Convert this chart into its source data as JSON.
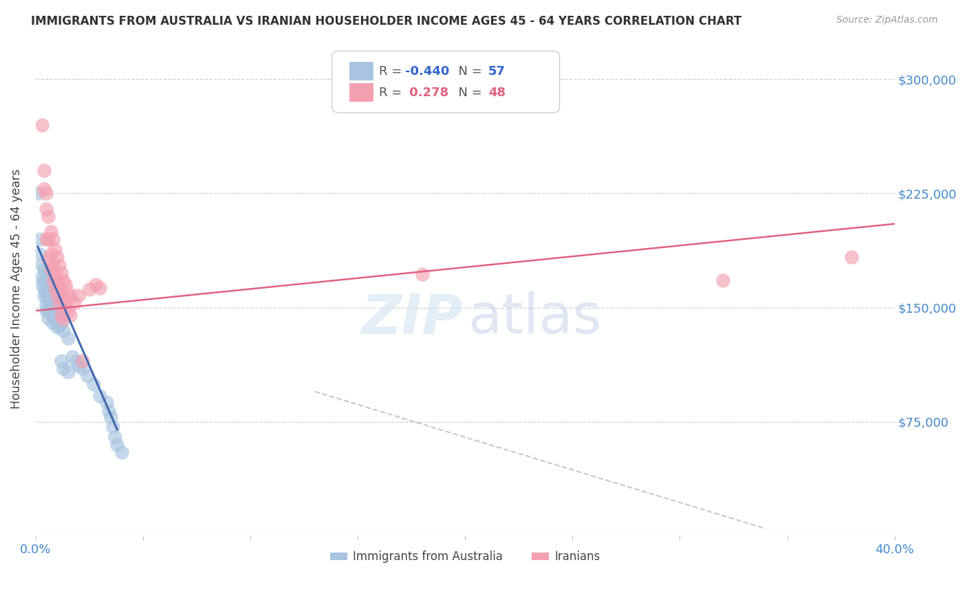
{
  "title": "IMMIGRANTS FROM AUSTRALIA VS IRANIAN HOUSEHOLDER INCOME AGES 45 - 64 YEARS CORRELATION CHART",
  "source": "Source: ZipAtlas.com",
  "ylabel": "Householder Income Ages 45 - 64 years",
  "y_ticks": [
    0,
    75000,
    150000,
    225000,
    300000
  ],
  "y_tick_labels": [
    "",
    "$75,000",
    "$150,000",
    "$225,000",
    "$300,000"
  ],
  "x_min": 0.0,
  "x_max": 0.4,
  "y_min": 0,
  "y_max": 325000,
  "australia_color": "#a8c4e0",
  "iran_color": "#f4a0b0",
  "australia_line_color": "#4169b0",
  "iran_line_color": "#e06080",
  "dashed_line_color": "#c8c8c8",
  "grid_color": "#d0d0d0",
  "tick_label_color": "#4488cc",
  "title_color": "#333333",
  "australia_scatter": [
    [
      0.001,
      225000
    ],
    [
      0.002,
      195000
    ],
    [
      0.002,
      185000
    ],
    [
      0.003,
      178000
    ],
    [
      0.003,
      170000
    ],
    [
      0.003,
      165000
    ],
    [
      0.004,
      175000
    ],
    [
      0.004,
      168000
    ],
    [
      0.004,
      162000
    ],
    [
      0.004,
      158000
    ],
    [
      0.005,
      172000
    ],
    [
      0.005,
      165000
    ],
    [
      0.005,
      158000
    ],
    [
      0.005,
      152000
    ],
    [
      0.005,
      148000
    ],
    [
      0.006,
      168000
    ],
    [
      0.006,
      162000
    ],
    [
      0.006,
      155000
    ],
    [
      0.006,
      148000
    ],
    [
      0.006,
      143000
    ],
    [
      0.007,
      163000
    ],
    [
      0.007,
      158000
    ],
    [
      0.007,
      152000
    ],
    [
      0.007,
      146000
    ],
    [
      0.008,
      158000
    ],
    [
      0.008,
      152000
    ],
    [
      0.008,
      145000
    ],
    [
      0.008,
      140000
    ],
    [
      0.009,
      155000
    ],
    [
      0.009,
      148000
    ],
    [
      0.009,
      142000
    ],
    [
      0.01,
      150000
    ],
    [
      0.01,
      143000
    ],
    [
      0.01,
      137000
    ],
    [
      0.011,
      145000
    ],
    [
      0.011,
      138000
    ],
    [
      0.012,
      140000
    ],
    [
      0.012,
      115000
    ],
    [
      0.013,
      135000
    ],
    [
      0.013,
      110000
    ],
    [
      0.015,
      130000
    ],
    [
      0.015,
      108000
    ],
    [
      0.017,
      118000
    ],
    [
      0.019,
      115000
    ],
    [
      0.02,
      112000
    ],
    [
      0.022,
      110000
    ],
    [
      0.024,
      105000
    ],
    [
      0.027,
      100000
    ],
    [
      0.03,
      92000
    ],
    [
      0.033,
      88000
    ],
    [
      0.034,
      82000
    ],
    [
      0.035,
      78000
    ],
    [
      0.036,
      72000
    ],
    [
      0.037,
      65000
    ],
    [
      0.038,
      60000
    ],
    [
      0.04,
      55000
    ]
  ],
  "iran_scatter": [
    [
      0.003,
      270000
    ],
    [
      0.004,
      240000
    ],
    [
      0.004,
      228000
    ],
    [
      0.005,
      225000
    ],
    [
      0.005,
      215000
    ],
    [
      0.005,
      195000
    ],
    [
      0.006,
      210000
    ],
    [
      0.006,
      195000
    ],
    [
      0.006,
      182000
    ],
    [
      0.007,
      200000
    ],
    [
      0.007,
      185000
    ],
    [
      0.007,
      175000
    ],
    [
      0.008,
      195000
    ],
    [
      0.008,
      178000
    ],
    [
      0.008,
      168000
    ],
    [
      0.009,
      188000
    ],
    [
      0.009,
      172000
    ],
    [
      0.009,
      162000
    ],
    [
      0.01,
      183000
    ],
    [
      0.01,
      168000
    ],
    [
      0.01,
      158000
    ],
    [
      0.011,
      178000
    ],
    [
      0.011,
      163000
    ],
    [
      0.011,
      152000
    ],
    [
      0.012,
      173000
    ],
    [
      0.012,
      158000
    ],
    [
      0.012,
      145000
    ],
    [
      0.013,
      168000
    ],
    [
      0.013,
      155000
    ],
    [
      0.013,
      142000
    ],
    [
      0.014,
      165000
    ],
    [
      0.014,
      152000
    ],
    [
      0.015,
      160000
    ],
    [
      0.015,
      148000
    ],
    [
      0.016,
      157000
    ],
    [
      0.016,
      145000
    ],
    [
      0.018,
      153000
    ],
    [
      0.02,
      158000
    ],
    [
      0.022,
      115000
    ],
    [
      0.025,
      162000
    ],
    [
      0.028,
      165000
    ],
    [
      0.03,
      163000
    ],
    [
      0.18,
      172000
    ],
    [
      0.32,
      168000
    ],
    [
      0.38,
      183000
    ]
  ],
  "australia_reg_line": [
    [
      0.001,
      190000
    ],
    [
      0.038,
      70000
    ]
  ],
  "iran_reg_line": [
    [
      0.0,
      148000
    ],
    [
      0.4,
      205000
    ]
  ],
  "dashed_reg_line": [
    [
      0.13,
      95000
    ],
    [
      0.34,
      5000
    ]
  ]
}
